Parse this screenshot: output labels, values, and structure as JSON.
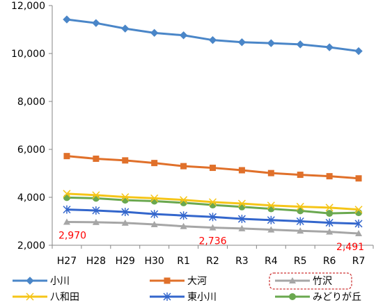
{
  "chart_data": {
    "type": "line",
    "categories": [
      "H27",
      "H28",
      "H29",
      "H30",
      "R1",
      "R2",
      "R3",
      "R4",
      "R5",
      "R6",
      "R7"
    ],
    "ylim": [
      2000,
      12000
    ],
    "yticks": [
      "2,000",
      "4,000",
      "6,000",
      "8,000",
      "10,000",
      "12,000"
    ],
    "grid": false,
    "legend_position": "bottom",
    "series": [
      {
        "name": "小川",
        "color": "#4a86c8",
        "marker": "diamond",
        "values": [
          11420,
          11270,
          11040,
          10860,
          10760,
          10560,
          10470,
          10430,
          10380,
          10260,
          10100
        ]
      },
      {
        "name": "大河",
        "color": "#e0702a",
        "marker": "square",
        "values": [
          5720,
          5610,
          5540,
          5430,
          5300,
          5230,
          5130,
          5010,
          4940,
          4880,
          4790
        ]
      },
      {
        "name": "竹沢",
        "color": "#a6a6a6",
        "marker": "triangle",
        "legend_highlight": true,
        "values": [
          2970,
          2960,
          2930,
          2870,
          2790,
          2736,
          2700,
          2650,
          2600,
          2560,
          2491
        ]
      },
      {
        "name": "八和田",
        "color": "#f5c518",
        "marker": "x",
        "values": [
          4150,
          4090,
          4010,
          3960,
          3890,
          3800,
          3740,
          3660,
          3610,
          3570,
          3490
        ]
      },
      {
        "name": "東小川",
        "color": "#3366cc",
        "marker": "star",
        "values": [
          3490,
          3450,
          3390,
          3300,
          3240,
          3180,
          3100,
          3050,
          3000,
          2940,
          2900
        ]
      },
      {
        "name": "みどりが丘",
        "color": "#6aa84f",
        "marker": "circle",
        "values": [
          3990,
          3960,
          3880,
          3840,
          3770,
          3680,
          3600,
          3520,
          3440,
          3330,
          3360
        ]
      }
    ],
    "annotations": [
      {
        "text": "2,970",
        "category": "H27",
        "value": 2970
      },
      {
        "text": "2,736",
        "category": "R2",
        "value": 2736
      },
      {
        "text": "2,491",
        "category": "R7",
        "value": 2491
      }
    ]
  }
}
